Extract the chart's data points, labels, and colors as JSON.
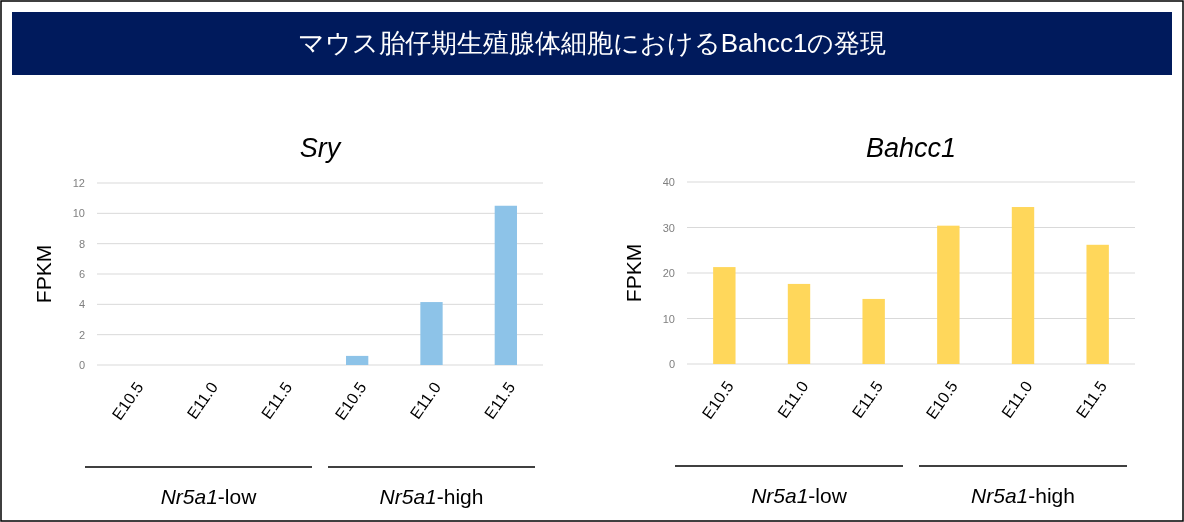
{
  "chart_data": [
    {
      "type": "other",
      "title": "マウス胎仔期生殖腺体細胞におけるBahcc1の発現"
    },
    {
      "type": "bar",
      "title": "Sry",
      "ylabel": "FPKM",
      "categories": [
        "E10.5",
        "E11.0",
        "E11.5",
        "E10.5",
        "E11.0",
        "E11.5"
      ],
      "values": [
        0,
        0,
        0,
        0.6,
        4.15,
        10.5
      ],
      "color": "#8dc3e8",
      "ylim": [
        0,
        12
      ],
      "yticks": [
        0,
        2,
        4,
        6,
        8,
        10,
        12
      ],
      "grid": "y",
      "annotations": [
        "*Nr5a1*-low",
        "*Nr5a1*-high"
      ]
    },
    {
      "type": "bar",
      "title": "Bahcc1",
      "ylabel": "FPKM",
      "categories": [
        "E10.5",
        "E11.0",
        "E11.5",
        "E10.5",
        "E11.0",
        "E11.5"
      ],
      "values": [
        21.3,
        17.6,
        14.3,
        30.4,
        34.5,
        26.2
      ],
      "color": "#ffd75b",
      "ylim": [
        0,
        40
      ],
      "yticks": [
        0,
        10,
        20,
        30,
        40
      ],
      "grid": "y",
      "annotations": [
        "*Nr5a1*-low",
        "*Nr5a1*-high"
      ]
    }
  ]
}
